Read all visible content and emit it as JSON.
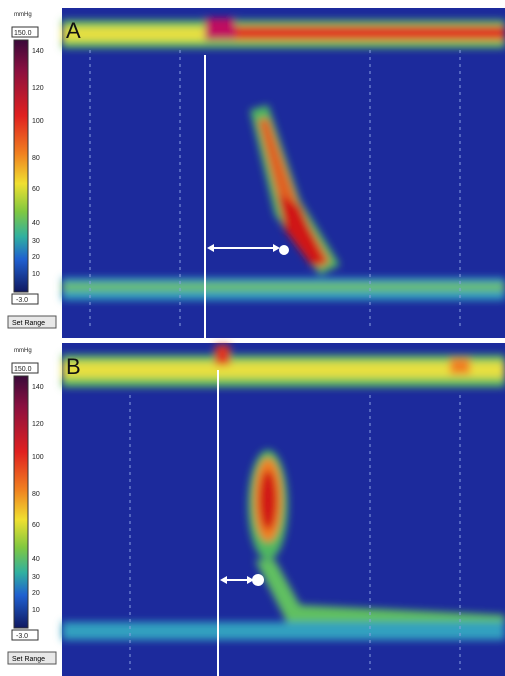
{
  "panels": [
    {
      "label": "A",
      "scale": {
        "unit": "mmHg",
        "max": "150.0",
        "ticks": [
          140,
          120,
          100,
          80,
          60,
          40,
          30,
          20,
          10
        ],
        "min": "-3.0"
      },
      "button": "Set Range"
    },
    {
      "label": "B",
      "scale": {
        "unit": "mmHg",
        "max": "150.0",
        "ticks": [
          140,
          120,
          100,
          80,
          60,
          40,
          30,
          20,
          10
        ],
        "min": "-3.0"
      },
      "button": "Set Range"
    }
  ]
}
